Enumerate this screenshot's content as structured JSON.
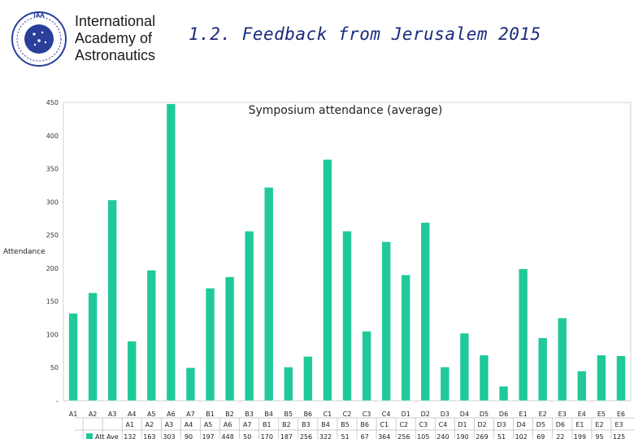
{
  "header": {
    "org_name": "International\nAcademy of\nAstronautics",
    "logo_text": "IAA",
    "slide_title": "1.2. Feedback from Jerusalem 2015"
  },
  "chart_data": {
    "type": "bar",
    "title": "Symposium attendance (average)",
    "ylabel": "Attendance",
    "xlabel": "",
    "ylim": [
      0,
      450
    ],
    "yticks": [
      0,
      50,
      100,
      150,
      200,
      250,
      300,
      350,
      400,
      450
    ],
    "zero_tick_label": "-",
    "grid": false,
    "bar_color": "#1fc99a",
    "categories": [
      "A1",
      "A2",
      "A3",
      "A4",
      "A5",
      "A6",
      "A7",
      "B1",
      "B2",
      "B3",
      "B4",
      "B5",
      "B6",
      "C1",
      "C2",
      "C3",
      "C4",
      "D1",
      "D2",
      "D3",
      "D4",
      "D5",
      "D6",
      "E1",
      "E2",
      "E3",
      "E4",
      "E5",
      "E6"
    ],
    "series": [
      {
        "name": "Att Ave",
        "values": [
          132,
          163,
          303,
          90,
          197,
          448,
          50,
          170,
          187,
          256,
          322,
          51,
          67,
          364,
          256,
          105,
          240,
          190,
          269,
          51,
          102,
          69,
          22,
          199,
          95,
          125,
          45,
          69,
          68
        ]
      }
    ]
  }
}
